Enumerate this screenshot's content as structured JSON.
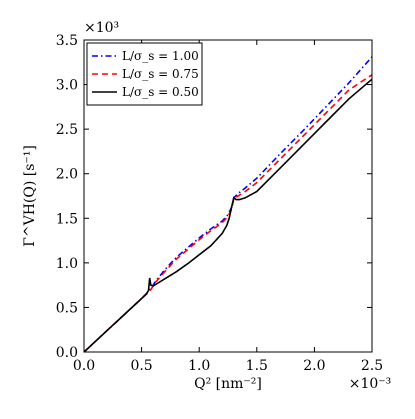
{
  "chart_data": {
    "type": "line",
    "title": "",
    "xlabel": "Q² [nm⁻²]",
    "ylabel": "Γ^VH(Q) [s⁻¹]",
    "x_multiplier": "×10⁻³",
    "y_multiplier": "×10³",
    "x_unit": "nm⁻² (×10⁻³)",
    "y_unit": "s⁻¹ (×10³)",
    "xlim": [
      0.0,
      2.5
    ],
    "ylim": [
      0.0,
      3.5
    ],
    "xticks": [
      "0.0",
      "0.5",
      "1.0",
      "1.5",
      "2.0",
      "2.5"
    ],
    "yticks": [
      "0.0",
      "0.5",
      "1.0",
      "1.5",
      "2.0",
      "2.5",
      "3.0",
      "3.5"
    ],
    "grid": false,
    "legend_position": "top-left",
    "series": [
      {
        "name": "L/σs = 1.00",
        "legend_label": "L/σ_s = 1.00",
        "color": "#0000ff",
        "linestyle": "dashdot",
        "x": [
          0.0,
          0.1,
          0.2,
          0.3,
          0.4,
          0.5,
          0.55,
          0.58,
          0.62,
          0.7,
          0.8,
          0.9,
          1.0,
          1.1,
          1.2,
          1.25,
          1.28,
          1.3,
          1.35,
          1.4,
          1.5,
          1.7,
          1.9,
          2.1,
          2.3,
          2.5
        ],
        "y": [
          0.0,
          0.12,
          0.24,
          0.36,
          0.48,
          0.6,
          0.665,
          0.71,
          0.79,
          0.92,
          1.06,
          1.17,
          1.28,
          1.38,
          1.47,
          1.54,
          1.62,
          1.73,
          1.79,
          1.84,
          1.95,
          2.22,
          2.48,
          2.75,
          3.02,
          3.31
        ]
      },
      {
        "name": "L/σs = 0.75",
        "legend_label": "L/σ_s = 0.75",
        "color": "#ff0000",
        "linestyle": "dashed",
        "x": [
          0.0,
          0.1,
          0.2,
          0.3,
          0.4,
          0.5,
          0.55,
          0.58,
          0.62,
          0.7,
          0.8,
          0.9,
          1.0,
          1.1,
          1.2,
          1.25,
          1.28,
          1.3,
          1.35,
          1.4,
          1.5,
          1.7,
          1.9,
          2.1,
          2.3,
          2.5
        ],
        "y": [
          0.0,
          0.12,
          0.24,
          0.36,
          0.48,
          0.6,
          0.66,
          0.7,
          0.78,
          0.9,
          1.04,
          1.15,
          1.26,
          1.36,
          1.45,
          1.52,
          1.6,
          1.72,
          1.76,
          1.8,
          1.9,
          2.16,
          2.42,
          2.68,
          2.94,
          3.11
        ]
      },
      {
        "name": "L/σs = 0.50",
        "legend_label": "L/σ_s = 0.50",
        "color": "#000000",
        "linestyle": "solid",
        "x": [
          0.0,
          0.1,
          0.2,
          0.3,
          0.4,
          0.5,
          0.54,
          0.56,
          0.57,
          0.58,
          0.6,
          0.65,
          0.7,
          0.8,
          0.9,
          1.0,
          1.1,
          1.2,
          1.24,
          1.26,
          1.28,
          1.3,
          1.32,
          1.35,
          1.4,
          1.5,
          1.7,
          1.9,
          2.1,
          2.3,
          2.5
        ],
        "y": [
          0.0,
          0.12,
          0.24,
          0.36,
          0.48,
          0.6,
          0.65,
          0.69,
          0.83,
          0.75,
          0.74,
          0.78,
          0.82,
          0.9,
          0.99,
          1.09,
          1.19,
          1.33,
          1.42,
          1.5,
          1.62,
          1.73,
          1.71,
          1.71,
          1.73,
          1.8,
          2.06,
          2.32,
          2.58,
          2.84,
          3.06
        ]
      }
    ]
  }
}
